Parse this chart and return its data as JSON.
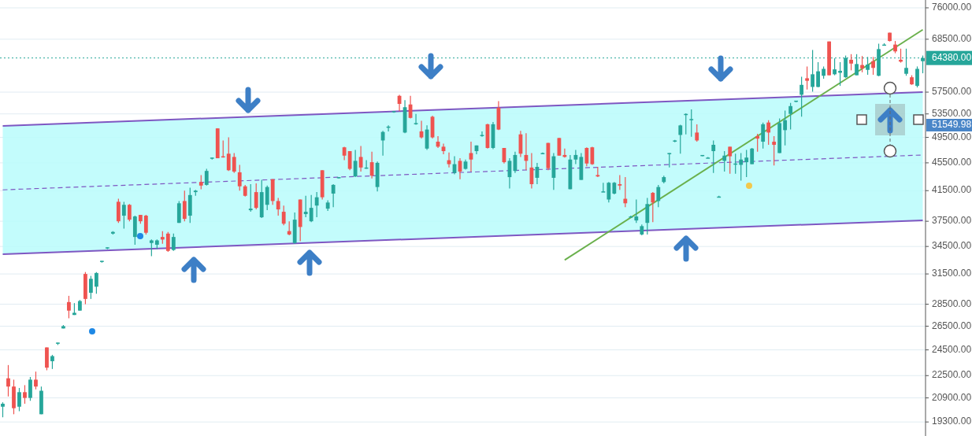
{
  "chart_data": {
    "type": "candlestick",
    "categories": [
      null,
      null,
      null,
      null,
      null,
      null,
      null,
      null,
      null,
      null,
      null,
      null,
      null,
      null,
      null,
      null,
      null,
      null,
      null,
      null,
      null,
      null,
      null,
      null,
      null,
      null,
      null,
      null,
      null,
      null,
      null,
      null,
      null,
      null,
      null,
      null,
      null,
      null,
      null,
      null,
      null,
      null,
      null,
      null,
      null,
      null,
      null,
      null,
      null,
      null,
      null,
      null,
      null,
      null,
      null,
      null,
      null,
      null,
      null,
      null,
      null,
      null,
      null,
      null,
      null,
      null,
      null,
      null,
      null,
      null,
      null,
      null,
      null,
      null,
      null,
      null,
      null,
      null,
      null,
      null,
      null,
      null,
      null,
      null,
      null,
      null,
      null,
      null,
      null,
      null,
      null,
      null,
      null,
      null,
      null,
      null,
      null,
      null,
      null,
      null,
      null,
      null,
      null,
      null,
      null,
      null,
      null,
      null,
      null,
      null,
      null,
      null,
      null,
      null,
      null,
      null,
      null,
      null,
      null,
      null,
      null,
      null,
      null,
      null,
      null,
      null,
      null,
      null,
      null,
      null,
      null,
      null,
      null,
      null,
      null,
      null,
      null,
      null,
      null,
      null,
      null,
      null,
      null,
      null,
      null,
      null,
      null,
      null,
      null,
      null,
      null,
      null,
      null,
      null,
      null,
      null,
      null,
      null,
      null,
      null,
      null,
      null,
      null,
      null,
      null,
      null,
      null,
      null
    ],
    "ohlc": [
      [
        20300,
        20600,
        19600,
        20500
      ],
      [
        22300,
        23300,
        21000,
        21700
      ],
      [
        21700,
        22200,
        19800,
        20200
      ],
      [
        20300,
        21600,
        20000,
        21300
      ],
      [
        21300,
        21800,
        20500,
        20900
      ],
      [
        20900,
        22400,
        20700,
        22200
      ],
      [
        22200,
        22800,
        21500,
        21700
      ],
      [
        19800,
        21700,
        19800,
        21400
      ],
      [
        24700,
        24700,
        22900,
        23100
      ],
      [
        23600,
        24100,
        23000,
        24000
      ],
      [
        25000,
        25100,
        24900,
        25100
      ],
      [
        26300,
        26600,
        26300,
        26500
      ],
      [
        28700,
        29300,
        27200,
        27900
      ],
      [
        27500,
        28600,
        27500,
        27700
      ],
      [
        27900,
        28900,
        27900,
        28800
      ],
      [
        31500,
        31700,
        28500,
        29000
      ],
      [
        29600,
        31300,
        29000,
        31000
      ],
      [
        30200,
        31700,
        29500,
        31600
      ],
      [
        32800,
        32900,
        32700,
        32900
      ],
      [
        34300,
        34400,
        34200,
        34400
      ],
      [
        36000,
        36300,
        35900,
        36200
      ],
      [
        40000,
        40400,
        37300,
        37500
      ],
      [
        38200,
        40000,
        36600,
        39600
      ],
      [
        39600,
        39700,
        37500,
        37700
      ],
      [
        35600,
        38200,
        34700,
        38100
      ],
      [
        38300,
        38300,
        37200,
        37500
      ],
      [
        38200,
        38300,
        35900,
        36100
      ],
      [
        34900,
        35300,
        33400,
        35200
      ],
      [
        34700,
        35300,
        34200,
        35200
      ],
      [
        35600,
        36300,
        34800,
        35300
      ],
      [
        36000,
        36200,
        33900,
        34000
      ],
      [
        34100,
        36000,
        34000,
        35600
      ],
      [
        37300,
        40100,
        37300,
        39800
      ],
      [
        40100,
        41500,
        37500,
        37800
      ],
      [
        38200,
        41900,
        37300,
        40900
      ],
      [
        41300,
        41600,
        40800,
        41500
      ],
      [
        42700,
        43700,
        41700,
        42200
      ],
      [
        42300,
        44600,
        42200,
        44300
      ],
      [
        46300,
        46300,
        46000,
        46300
      ],
      [
        51000,
        51000,
        46200,
        46200
      ],
      [
        46500,
        49000,
        46300,
        46400
      ],
      [
        46900,
        49500,
        44300,
        44400
      ],
      [
        46400,
        47000,
        44000,
        44200
      ],
      [
        44100,
        45200,
        41500,
        42100
      ],
      [
        42100,
        42300,
        40700,
        40800
      ],
      [
        38900,
        42400,
        38700,
        39100
      ],
      [
        41300,
        42500,
        39000,
        39200
      ],
      [
        38000,
        43000,
        37900,
        41300
      ],
      [
        39600,
        42200,
        38900,
        42000
      ],
      [
        43100,
        43100,
        39600,
        40100
      ],
      [
        40100,
        40500,
        38200,
        39000
      ],
      [
        38700,
        39500,
        37000,
        37200
      ],
      [
        36300,
        37500,
        35800,
        35900
      ],
      [
        34900,
        38600,
        34800,
        37700
      ],
      [
        40300,
        40300,
        35100,
        36800
      ],
      [
        38400,
        40800,
        38000,
        38700
      ],
      [
        37500,
        40900,
        37400,
        39200
      ],
      [
        39500,
        41300,
        38000,
        40600
      ],
      [
        44400,
        44400,
        40300,
        40600
      ],
      [
        39100,
        40200,
        38800,
        39900
      ],
      [
        41100,
        42400,
        39300,
        42300
      ],
      [
        43300,
        43400,
        43200,
        43400
      ],
      [
        47900,
        48000,
        45900,
        46600
      ],
      [
        47300,
        47300,
        44400,
        44600
      ],
      [
        43500,
        47500,
        43400,
        45800
      ],
      [
        46400,
        48100,
        44200,
        44800
      ],
      [
        44700,
        45900,
        44600,
        44800
      ],
      [
        45600,
        47200,
        43200,
        43600
      ],
      [
        42000,
        45700,
        41400,
        45500
      ],
      [
        49000,
        50600,
        46600,
        50400
      ],
      [
        51200,
        51500,
        50500,
        51300
      ],
      [
        53900,
        54000,
        53700,
        54000
      ],
      [
        56800,
        57000,
        54000,
        55300
      ],
      [
        50300,
        56000,
        50200,
        54700
      ],
      [
        55200,
        56800,
        52700,
        52800
      ],
      [
        51800,
        53500,
        51600,
        51900
      ],
      [
        50500,
        52300,
        49300,
        49500
      ],
      [
        47700,
        51500,
        47500,
        50800
      ],
      [
        53000,
        53200,
        49300,
        49500
      ],
      [
        48800,
        49700,
        47800,
        48000
      ],
      [
        48000,
        48500,
        46800,
        47300
      ],
      [
        45900,
        47100,
        44800,
        45300
      ],
      [
        44000,
        46500,
        43800,
        45300
      ],
      [
        45800,
        46200,
        43100,
        44200
      ],
      [
        44600,
        46000,
        44500,
        45700
      ],
      [
        47000,
        48800,
        44200,
        46000
      ],
      [
        47300,
        48200,
        46800,
        48200
      ],
      [
        49800,
        50500,
        49600,
        49900
      ],
      [
        51700,
        51800,
        47700,
        47800
      ],
      [
        47800,
        52100,
        47600,
        51700
      ],
      [
        54600,
        55800,
        50700,
        50800
      ],
      [
        47800,
        47800,
        45400,
        45600
      ],
      [
        43400,
        46200,
        41800,
        45800
      ],
      [
        44300,
        47200,
        44000,
        46700
      ],
      [
        50000,
        50600,
        46400,
        46900
      ],
      [
        46700,
        50200,
        44400,
        45800
      ],
      [
        44800,
        47000,
        41800,
        42400
      ],
      [
        43300,
        45500,
        42400,
        44900
      ],
      [
        47000,
        47100,
        46900,
        47000
      ],
      [
        48600,
        48600,
        44400,
        44700
      ],
      [
        43300,
        47000,
        41600,
        46500
      ],
      [
        49400,
        49400,
        46600,
        46600
      ],
      [
        46700,
        47700,
        46300,
        46400
      ],
      [
        41700,
        46700,
        41700,
        46000
      ],
      [
        46000,
        47500,
        45300,
        46700
      ],
      [
        43000,
        47000,
        43000,
        46400
      ],
      [
        47800,
        47900,
        45000,
        45400
      ],
      [
        47900,
        48000,
        45200,
        45300
      ],
      [
        43700,
        44900,
        43400,
        43500
      ],
      [
        41400,
        42600,
        41300,
        41400
      ],
      [
        40300,
        42700,
        39900,
        42600
      ],
      [
        41100,
        42700,
        41000,
        42600
      ],
      [
        42400,
        43700,
        41600,
        42200
      ],
      [
        40400,
        43400,
        39300,
        39800
      ],
      [
        38100,
        38200,
        38000,
        38100
      ],
      [
        37600,
        40300,
        37300,
        38100
      ],
      [
        35900,
        37100,
        35800,
        36900
      ],
      [
        37300,
        40500,
        35900,
        39700
      ],
      [
        41200,
        41300,
        37400,
        39900
      ],
      [
        40100,
        42300,
        39300,
        42000
      ],
      [
        42700,
        43600,
        42500,
        43400
      ],
      [
        46900,
        47000,
        44800,
        47000
      ],
      [
        48900,
        49100,
        48700,
        49000
      ],
      [
        49900,
        51600,
        46900,
        51500
      ],
      [
        53400,
        53600,
        50000,
        53500
      ],
      [
        52600,
        54300,
        49600,
        52600
      ],
      [
        50300,
        51700,
        48800,
        49000
      ],
      [
        46600,
        46700,
        46500,
        46700
      ],
      [
        46300,
        46400,
        46200,
        46300
      ],
      [
        47300,
        49000,
        44000,
        48300
      ],
      [
        40700,
        40800,
        40600,
        40700
      ],
      [
        45800,
        47300,
        44200,
        46600
      ],
      [
        48000,
        48000,
        43900,
        46500
      ],
      [
        45300,
        46900,
        43900,
        45400
      ],
      [
        45200,
        47000,
        42900,
        46000
      ],
      [
        45600,
        47500,
        43400,
        46300
      ],
      [
        45300,
        47800,
        45300,
        47700
      ],
      [
        49700,
        50100,
        47200,
        49300
      ],
      [
        48800,
        52000,
        47700,
        51700
      ],
      [
        52000,
        52400,
        48300,
        50300
      ],
      [
        48800,
        49700,
        45100,
        48300
      ],
      [
        47000,
        52700,
        47000,
        51900
      ],
      [
        50700,
        54100,
        48200,
        52400
      ],
      [
        53500,
        55500,
        50800,
        54900
      ],
      [
        55900,
        55900,
        55600,
        55900
      ],
      [
        57000,
        60500,
        53000,
        58900
      ],
      [
        60200,
        62600,
        58000,
        59700
      ],
      [
        58500,
        66100,
        57600,
        61000
      ],
      [
        58500,
        63500,
        58400,
        61600
      ],
      [
        60700,
        62600,
        60100,
        62100
      ],
      [
        68000,
        68000,
        60800,
        60800
      ],
      [
        61000,
        64300,
        60800,
        62000
      ],
      [
        61300,
        63500,
        58700,
        61700
      ],
      [
        60400,
        64900,
        60300,
        64400
      ],
      [
        64000,
        65200,
        61800,
        63200
      ],
      [
        60800,
        65200,
        60800,
        63100
      ],
      [
        62900,
        64800,
        61400,
        62200
      ],
      [
        61900,
        64600,
        60900,
        63000
      ],
      [
        63700,
        64600,
        60900,
        62300
      ],
      [
        60700,
        67500,
        60600,
        66300
      ],
      [
        67300,
        67600,
        67200,
        67300
      ],
      [
        70000,
        70000,
        68000,
        68100
      ],
      [
        67300,
        68100,
        65400,
        65800
      ],
      [
        64000,
        66400,
        63400,
        63600
      ],
      [
        61100,
        66400,
        60700,
        62300
      ],
      [
        60400,
        60800,
        58900,
        59000
      ],
      [
        58700,
        62600,
        58400,
        62100
      ],
      [
        63700,
        64900,
        61200,
        64380
      ]
    ],
    "series": [
      {
        "type": "line",
        "color": "#7e57c2",
        "line_style": "dashed",
        "values": [
          41610,
          null,
          null,
          null,
          null,
          null,
          null,
          null,
          null,
          null,
          null,
          null,
          null,
          null,
          null,
          null,
          null,
          null,
          null,
          null,
          null,
          null,
          null,
          null,
          null,
          null,
          null,
          null,
          null,
          null,
          null,
          null,
          null,
          null,
          null,
          null,
          null,
          null,
          null,
          null,
          null,
          null,
          null,
          null,
          null,
          null,
          null,
          null,
          null,
          null,
          null,
          null,
          null,
          null,
          null,
          null,
          null,
          null,
          null,
          null,
          null,
          null,
          null,
          null,
          null,
          null,
          null,
          null,
          null,
          null,
          null,
          null,
          null,
          null,
          null,
          null,
          null,
          null,
          null,
          null,
          null,
          null,
          null,
          null,
          null,
          null,
          null,
          null,
          null,
          null,
          null,
          null,
          null,
          null,
          null,
          null,
          null,
          null,
          null,
          null,
          null,
          null,
          null,
          null,
          null,
          null,
          null,
          null,
          null,
          null,
          null,
          null,
          null,
          null,
          null,
          null,
          null,
          null,
          null,
          null,
          null,
          null,
          null,
          null,
          null,
          null,
          null,
          null,
          null,
          null,
          null,
          null,
          null,
          null,
          null,
          null,
          null,
          null,
          null,
          null,
          null,
          null,
          null,
          null,
          null,
          null,
          null,
          null,
          null,
          null,
          null,
          null,
          null,
          null,
          null,
          null,
          null,
          null,
          null,
          null,
          null,
          null,
          null,
          null,
          null,
          null,
          null,
          46700
        ],
        "lower": [
          33630,
          null,
          null,
          null,
          null,
          null,
          null,
          null,
          null,
          null,
          null,
          null,
          null,
          null,
          null,
          null,
          null,
          null,
          null,
          null,
          null,
          null,
          null,
          null,
          null,
          null,
          null,
          null,
          null,
          null,
          null,
          null,
          null,
          null,
          null,
          null,
          null,
          null,
          null,
          null,
          null,
          null,
          null,
          null,
          null,
          null,
          null,
          null,
          null,
          null,
          null,
          null,
          null,
          null,
          null,
          null,
          null,
          null,
          null,
          null,
          null,
          null,
          null,
          null,
          null,
          null,
          null,
          null,
          null,
          null,
          null,
          null,
          null,
          null,
          null,
          null,
          null,
          null,
          null,
          null,
          null,
          null,
          null,
          null,
          null,
          null,
          null,
          null,
          null,
          null,
          null,
          null,
          null,
          null,
          null,
          null,
          null,
          null,
          null,
          null,
          null,
          null,
          null,
          null,
          null,
          null,
          null,
          null,
          null,
          null,
          null,
          null,
          null,
          null,
          null,
          null,
          null,
          null,
          null,
          null,
          null,
          null,
          null,
          null,
          null,
          null,
          null,
          null,
          null,
          null,
          null,
          null,
          null,
          null,
          null,
          null,
          null,
          null,
          null,
          null,
          null,
          null,
          null,
          null,
          null,
          null,
          null,
          null,
          null,
          null,
          null,
          null,
          null,
          null,
          null,
          null,
          null,
          null,
          null,
          null,
          null,
          null,
          null,
          null,
          null,
          null,
          null,
          37620
        ],
        "upper": [
          51430,
          null,
          null,
          null,
          null,
          null,
          null,
          null,
          null,
          null,
          null,
          null,
          null,
          null,
          null,
          null,
          null,
          null,
          null,
          null,
          null,
          null,
          null,
          null,
          null,
          null,
          null,
          null,
          null,
          null,
          null,
          null,
          null,
          null,
          null,
          null,
          null,
          null,
          null,
          null,
          null,
          null,
          null,
          null,
          null,
          null,
          null,
          null,
          null,
          null,
          null,
          null,
          null,
          null,
          null,
          null,
          null,
          null,
          null,
          null,
          null,
          null,
          null,
          null,
          null,
          null,
          null,
          null,
          null,
          null,
          null,
          null,
          null,
          null,
          null,
          null,
          null,
          null,
          null,
          null,
          null,
          null,
          null,
          null,
          null,
          null,
          null,
          null,
          null,
          null,
          null,
          null,
          null,
          null,
          null,
          null,
          null,
          null,
          null,
          null,
          null,
          null,
          null,
          null,
          null,
          null,
          null,
          null,
          null,
          null,
          null,
          null,
          null,
          null,
          null,
          null,
          null,
          null,
          null,
          null,
          null,
          null,
          null,
          null,
          null,
          null,
          null,
          null,
          null,
          null,
          null,
          null,
          null,
          null,
          null,
          null,
          null,
          null,
          null,
          null,
          null,
          null,
          null,
          null,
          null,
          null,
          null,
          null,
          null,
          null,
          null,
          null,
          null,
          null,
          null,
          null,
          null,
          null,
          null,
          null,
          null,
          null,
          null,
          null,
          null,
          null,
          null,
          57510
        ]
      },
      {
        "type": "line",
        "color": "#7e57c2",
        "line_style": "solid",
        "values": [
          33630,
          null,
          null,
          null,
          null,
          null,
          null,
          null,
          null,
          null,
          null,
          null,
          null,
          null,
          null,
          null,
          null,
          null,
          null,
          null,
          null,
          null,
          null,
          null,
          null,
          null,
          null,
          null,
          null,
          null,
          null,
          null,
          null,
          null,
          null,
          null,
          null,
          null,
          null,
          null,
          null,
          null,
          null,
          null,
          null,
          null,
          null,
          null,
          null,
          null,
          null,
          null,
          null,
          null,
          null,
          null,
          null,
          null,
          null,
          null,
          null,
          null,
          null,
          null,
          null,
          null,
          null,
          null,
          null,
          null,
          null,
          null,
          null,
          null,
          null,
          null,
          null,
          null,
          null,
          null,
          null,
          null,
          null,
          null,
          null,
          null,
          null,
          null,
          null,
          null,
          null,
          null,
          null,
          null,
          null,
          null,
          null,
          null,
          null,
          null,
          null,
          null,
          null,
          null,
          null,
          null,
          null,
          null,
          null,
          null,
          null,
          null,
          null,
          null,
          null,
          null,
          null,
          null,
          null,
          null,
          null,
          null,
          null,
          null,
          null,
          null,
          null,
          null,
          null,
          null,
          null,
          null,
          null,
          null,
          null,
          null,
          null,
          null,
          null,
          null,
          null,
          null,
          null,
          null,
          null,
          null,
          null,
          null,
          null,
          null,
          null,
          null,
          null,
          null,
          null,
          null,
          null,
          null,
          null,
          null,
          null,
          null,
          null,
          null,
          null,
          null,
          null,
          37620
        ]
      },
      {
        "type": "line",
        "color": "#7e57c2",
        "line_style": "solid",
        "values": [
          51430,
          null,
          null,
          null,
          null,
          null,
          null,
          null,
          null,
          null,
          null,
          null,
          null,
          null,
          null,
          null,
          null,
          null,
          null,
          null,
          null,
          null,
          null,
          null,
          null,
          null,
          null,
          null,
          null,
          null,
          null,
          null,
          null,
          null,
          null,
          null,
          null,
          null,
          null,
          null,
          null,
          null,
          null,
          null,
          null,
          null,
          null,
          null,
          null,
          null,
          null,
          null,
          null,
          null,
          null,
          null,
          null,
          null,
          null,
          null,
          null,
          null,
          null,
          null,
          null,
          null,
          null,
          null,
          null,
          null,
          null,
          null,
          null,
          null,
          null,
          null,
          null,
          null,
          null,
          null,
          null,
          null,
          null,
          null,
          null,
          null,
          null,
          null,
          null,
          null,
          null,
          null,
          null,
          null,
          null,
          null,
          null,
          null,
          null,
          null,
          null,
          null,
          null,
          null,
          null,
          null,
          null,
          null,
          null,
          null,
          null,
          null,
          null,
          null,
          null,
          null,
          null,
          null,
          null,
          null,
          null,
          null,
          null,
          null,
          null,
          null,
          null,
          null,
          null,
          null,
          null,
          null,
          null,
          null,
          null,
          null,
          null,
          null,
          null,
          null,
          null,
          null,
          null,
          null,
          null,
          null,
          null,
          null,
          null,
          null,
          null,
          null,
          null,
          null,
          null,
          null,
          null,
          null,
          null,
          null,
          null,
          null,
          null,
          null,
          null,
          null,
          null,
          57510
        ]
      },
      {
        "type": "line",
        "color": "#6ab04c",
        "line_style": "solid",
        "values": [
          null,
          null,
          null,
          null,
          null,
          null,
          null,
          null,
          null,
          null,
          null,
          null,
          null,
          null,
          null,
          null,
          null,
          null,
          null,
          null,
          null,
          null,
          null,
          null,
          null,
          null,
          null,
          null,
          null,
          null,
          null,
          null,
          null,
          null,
          null,
          null,
          null,
          null,
          null,
          null,
          null,
          null,
          null,
          null,
          null,
          null,
          null,
          null,
          null,
          null,
          null,
          null,
          null,
          null,
          null,
          null,
          null,
          null,
          null,
          null,
          null,
          null,
          null,
          null,
          null,
          null,
          null,
          null,
          null,
          null,
          null,
          null,
          null,
          null,
          null,
          null,
          null,
          null,
          null,
          null,
          null,
          null,
          null,
          null,
          null,
          null,
          null,
          null,
          null,
          null,
          null,
          null,
          null,
          null,
          null,
          null,
          null,
          null,
          null,
          null,
          null,
          null,
          32980,
          null,
          null,
          null,
          null,
          null,
          null,
          null,
          null,
          null,
          null,
          null,
          null,
          null,
          null,
          null,
          null,
          null,
          null,
          null,
          null,
          null,
          null,
          null,
          null,
          null,
          null,
          null,
          null,
          null,
          null,
          null,
          null,
          null,
          null,
          null,
          null,
          null,
          null,
          null,
          null,
          null,
          null,
          null,
          null,
          null,
          null,
          null,
          null,
          null,
          null,
          null,
          null,
          null,
          null,
          null,
          null,
          null,
          null,
          null,
          null,
          null,
          null,
          null,
          null,
          70700
        ]
      }
    ],
    "ylim": [
      18520,
      76390
    ],
    "yticks": [
      {
        "value": 76000,
        "label": "76000.00"
      },
      {
        "value": 68500,
        "label": "68500.00"
      },
      {
        "value": 57500,
        "label": "57500.00"
      },
      {
        "value": 53500,
        "label": "53500.00"
      },
      {
        "value": 49500,
        "label": "49500.00"
      },
      {
        "value": 45500,
        "label": "45500.00"
      },
      {
        "value": 41500,
        "label": "41500.00"
      },
      {
        "value": 37500,
        "label": "37500.00"
      },
      {
        "value": 34500,
        "label": "34500.00"
      },
      {
        "value": 31500,
        "label": "31500.00"
      },
      {
        "value": 28500,
        "label": "28500.00"
      },
      {
        "value": 26500,
        "label": "26500.00"
      },
      {
        "value": 24500,
        "label": "24500.00"
      },
      {
        "value": 22500,
        "label": "22500.00"
      },
      {
        "value": 20900,
        "label": "20900.00"
      },
      {
        "value": 19300,
        "label": "19300.00"
      }
    ],
    "log": true,
    "grid": "y",
    "tick_labels": "y",
    "ref_lines": [
      {
        "axis": "y",
        "value": 64380,
        "label": "64380.00",
        "color": "#26a69a",
        "line_style": "dotted"
      }
    ],
    "annotations": [
      "51549.98"
    ]
  }
}
